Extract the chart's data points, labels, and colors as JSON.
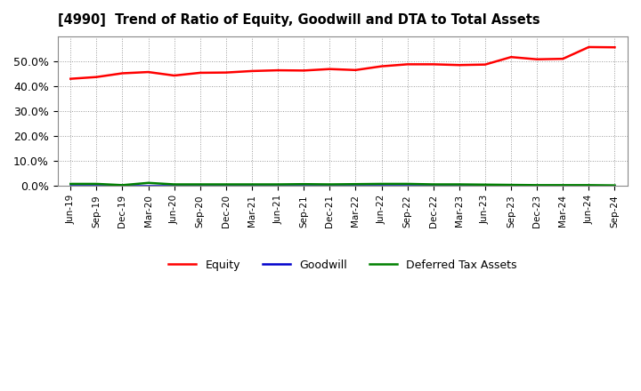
{
  "title": "[4990]  Trend of Ratio of Equity, Goodwill and DTA to Total Assets",
  "x_labels": [
    "Jun-19",
    "Sep-19",
    "Dec-19",
    "Mar-20",
    "Jun-20",
    "Sep-20",
    "Dec-20",
    "Mar-21",
    "Jun-21",
    "Sep-21",
    "Dec-21",
    "Mar-22",
    "Jun-22",
    "Sep-22",
    "Dec-22",
    "Mar-23",
    "Jun-23",
    "Sep-23",
    "Dec-23",
    "Mar-24",
    "Jun-24",
    "Sep-24"
  ],
  "equity": [
    0.43,
    0.437,
    0.452,
    0.457,
    0.443,
    0.454,
    0.455,
    0.461,
    0.464,
    0.463,
    0.469,
    0.465,
    0.48,
    0.488,
    0.488,
    0.485,
    0.487,
    0.517,
    0.508,
    0.51,
    0.557,
    0.556
  ],
  "goodwill": [
    0.003,
    0.003,
    0.003,
    0.003,
    0.003,
    0.003,
    0.003,
    0.003,
    0.003,
    0.003,
    0.003,
    0.003,
    0.003,
    0.003,
    0.003,
    0.003,
    0.003,
    0.003,
    0.003,
    0.003,
    0.003,
    0.003
  ],
  "dta": [
    0.009,
    0.009,
    0.004,
    0.013,
    0.007,
    0.007,
    0.007,
    0.007,
    0.007,
    0.008,
    0.007,
    0.008,
    0.009,
    0.009,
    0.007,
    0.007,
    0.006,
    0.005,
    0.004,
    0.004,
    0.004,
    0.003
  ],
  "equity_color": "#ff0000",
  "goodwill_color": "#0000cc",
  "dta_color": "#008000",
  "ylim": [
    0.0,
    0.6
  ],
  "yticks": [
    0.0,
    0.1,
    0.2,
    0.3,
    0.4,
    0.5
  ],
  "background_color": "#ffffff",
  "grid_color": "#999999"
}
